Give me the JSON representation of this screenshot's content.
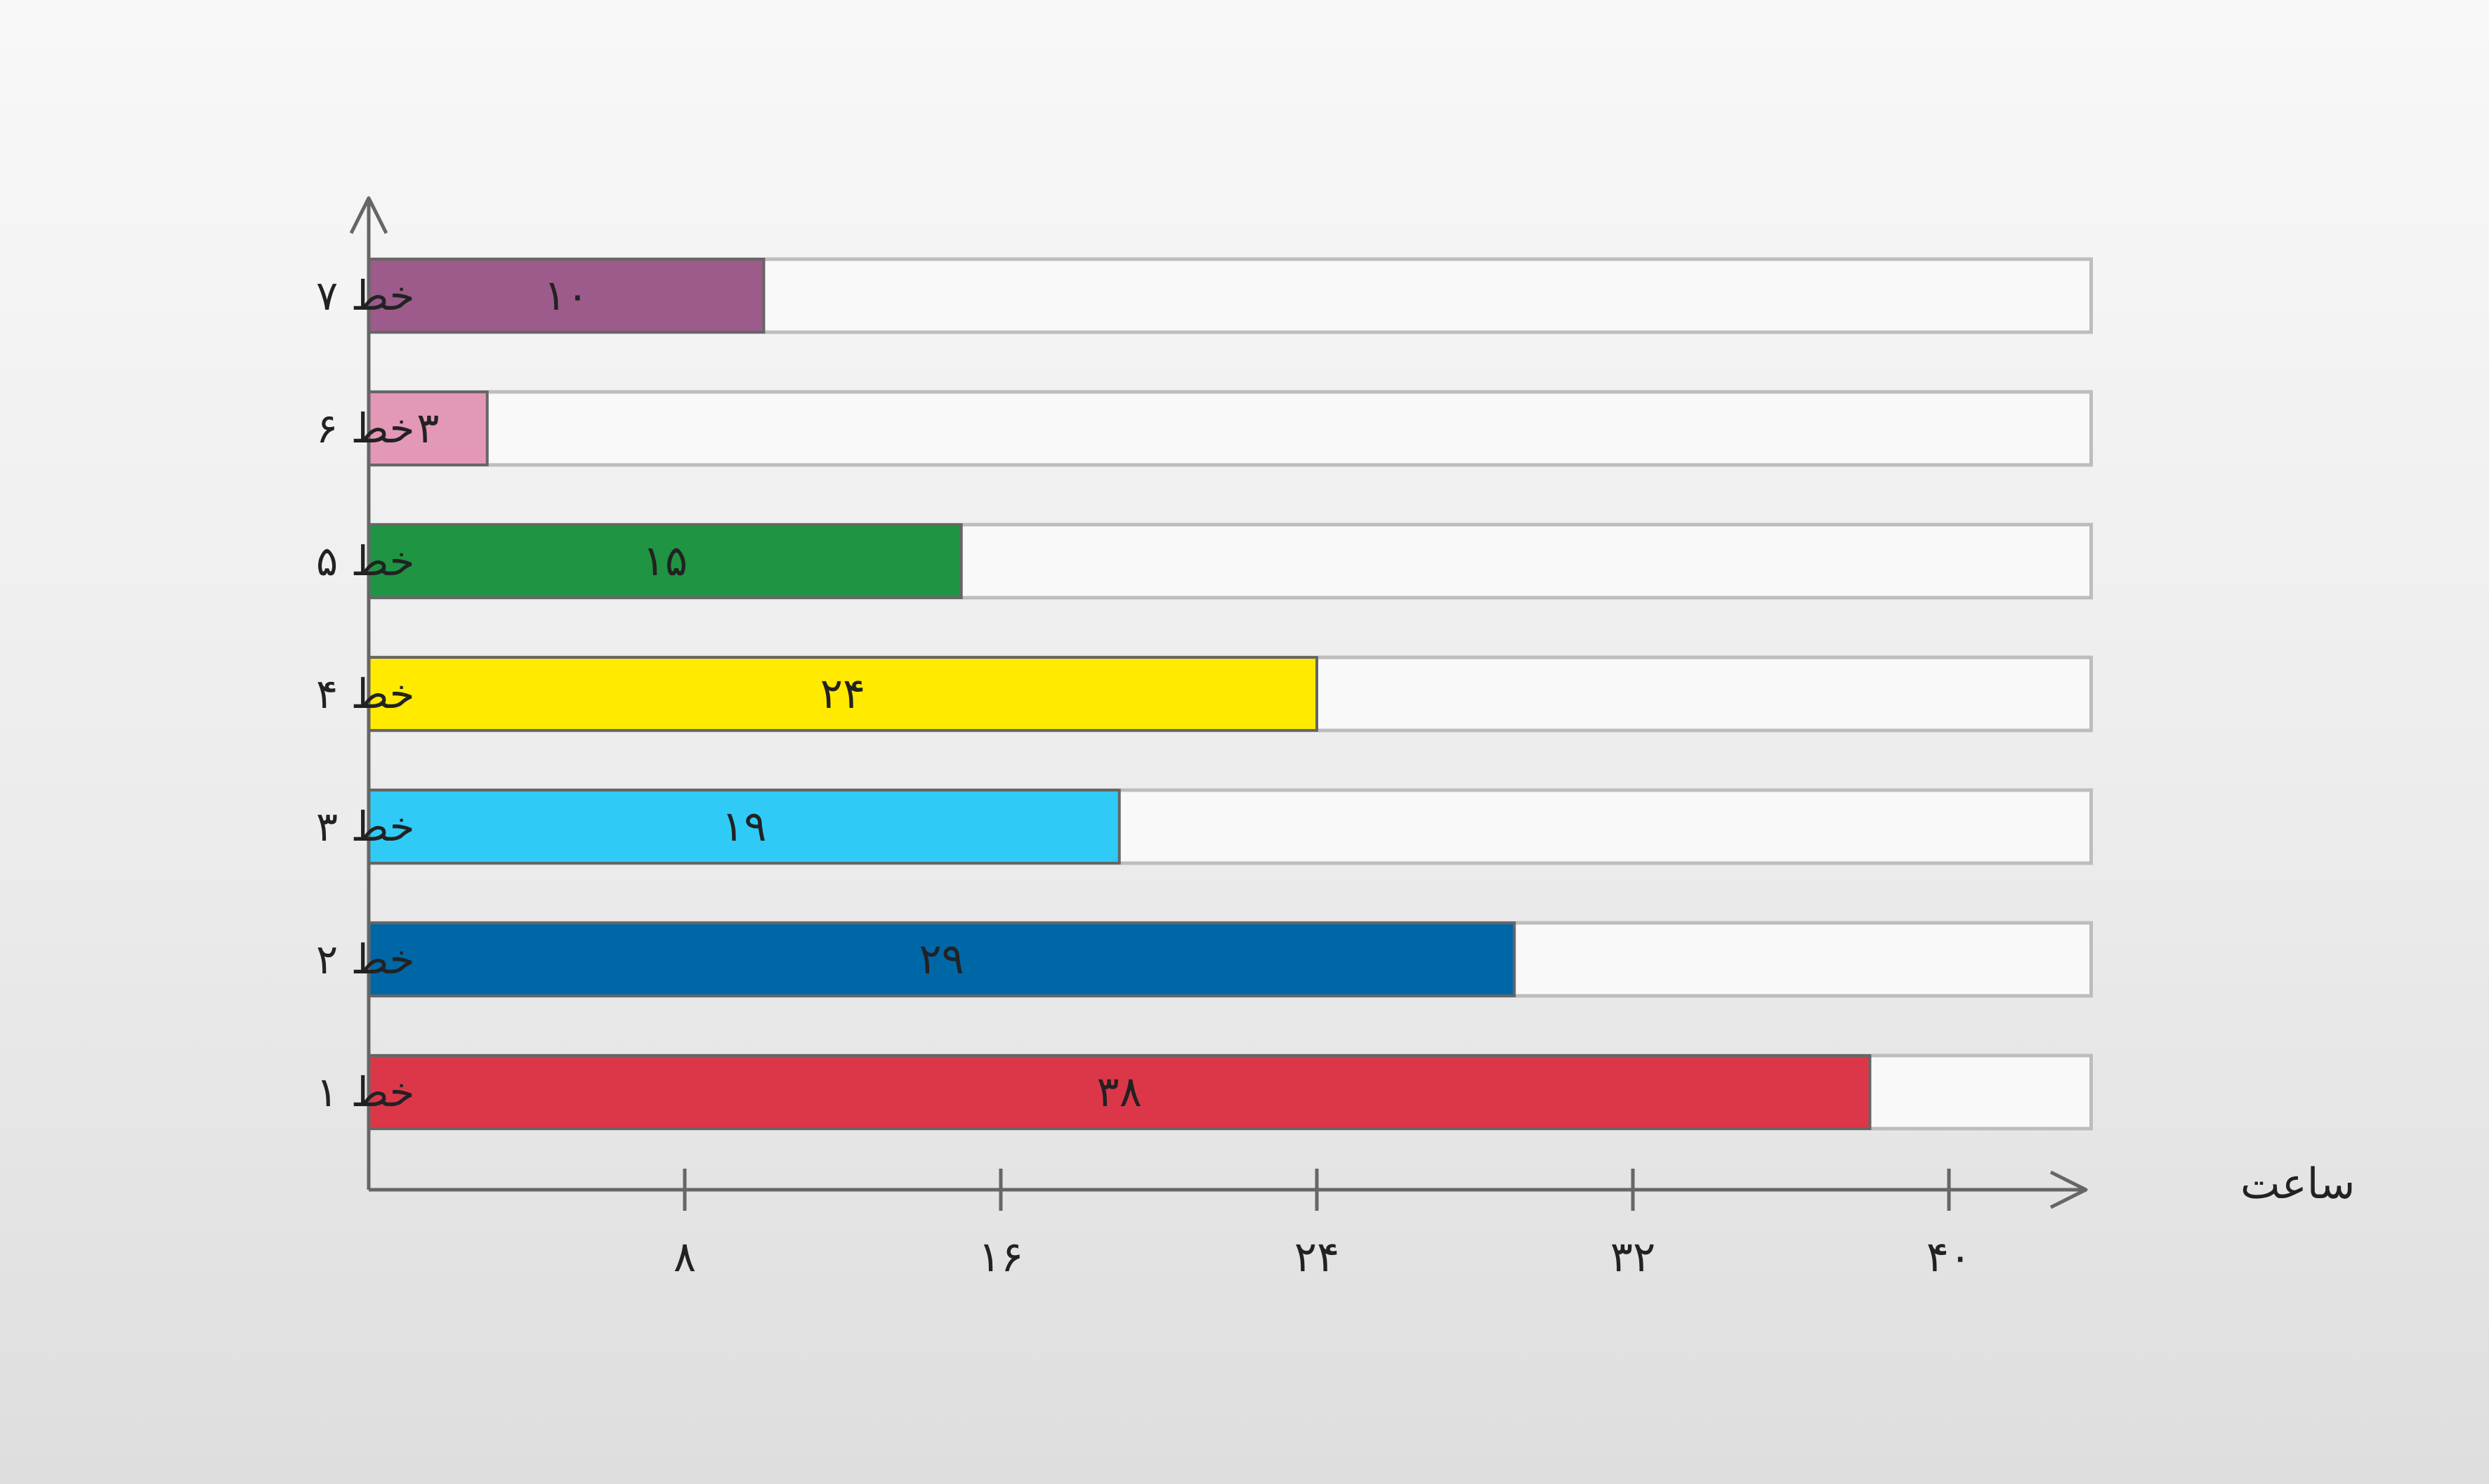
{
  "chart_data": {
    "type": "bar",
    "orientation": "horizontal",
    "categories": [
      "خط ۱",
      "خط ۲",
      "خط ۳",
      "خط ۴",
      "خط ۵",
      "خط ۶",
      "خط ۷"
    ],
    "values": [
      38,
      29,
      19,
      24,
      15,
      3,
      10
    ],
    "value_labels": [
      "۳۸",
      "۲۹",
      "۱۹",
      "۲۴",
      "۱۵",
      "۳",
      "۱۰"
    ],
    "colors": [
      "#dc3749",
      "#0067a7",
      "#2fcbf6",
      "#ffea00",
      "#1f9443",
      "#e498b8",
      "#9c5b8b"
    ],
    "track_color": "#f9f9f9",
    "xlim": [
      0,
      43.6
    ],
    "xticks": [
      8,
      16,
      24,
      32,
      40
    ],
    "xtick_labels": [
      "۸",
      "۱۶",
      "۲۴",
      "۳۲",
      "۴۰"
    ],
    "xlabel": "ساعت",
    "ylabel": "",
    "title": "",
    "grid": false,
    "legend": "none"
  }
}
